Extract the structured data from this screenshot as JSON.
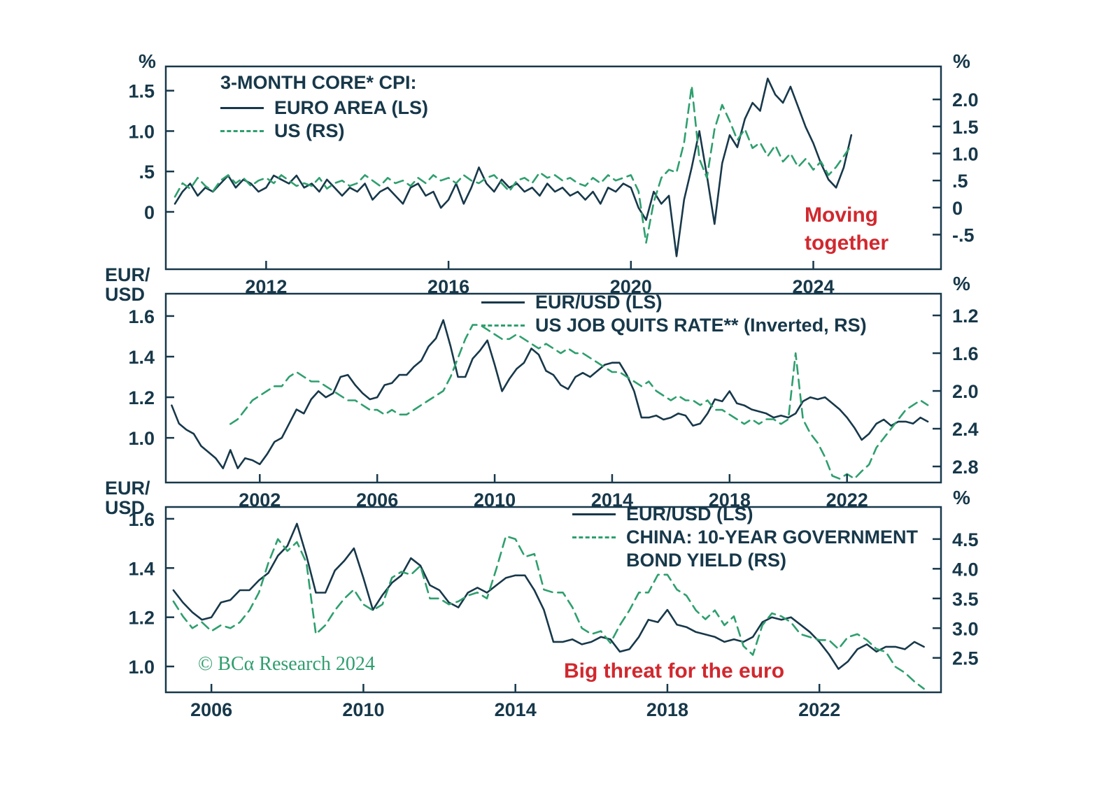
{
  "colors": {
    "line_dark": "#17384a",
    "line_green": "#2e9f6e",
    "text_dark": "#17384a",
    "annotation_red": "#d1282e",
    "copyright_green": "#2f9e6e",
    "background": "#ffffff"
  },
  "copyright": "© BCα Research 2024",
  "chart_data": [
    {
      "type": "line",
      "id": "core-cpi",
      "legend_title": "3-MONTH CORE* CPI:",
      "left_axis": {
        "unit": "%",
        "range": [
          1.8,
          -0.71
        ],
        "ticks": [
          {
            "label": "1.5",
            "value": 1.5
          },
          {
            "label": "1.0",
            "value": 1.0
          },
          {
            "label": ".5",
            "value": 0.5
          },
          {
            "label": "0",
            "value": 0
          }
        ]
      },
      "right_axis": {
        "unit": "%",
        "range": [
          2.61,
          -1.14
        ],
        "ticks": [
          {
            "label": "2.0",
            "value": 2.0
          },
          {
            "label": "1.5",
            "value": 1.5
          },
          {
            "label": "1.0",
            "value": 1.0
          },
          {
            "label": ".5",
            "value": 0.5
          },
          {
            "label": "0",
            "value": 0
          },
          {
            "label": "-.5",
            "value": -0.5
          }
        ]
      },
      "x_axis": {
        "range": [
          2009.8,
          2026.8
        ],
        "ticks": [
          {
            "label": "2012",
            "value": 2012
          },
          {
            "label": "2016",
            "value": 2016
          },
          {
            "label": "2020",
            "value": 2020
          },
          {
            "label": "2024",
            "value": 2024
          }
        ]
      },
      "annotation": {
        "line1": "Moving",
        "line2": "together"
      },
      "series": [
        {
          "name": "EURO AREA (LS)",
          "axis": "left",
          "style": "solid",
          "start": 2010.0,
          "step": 0.1666667,
          "values": [
            0.1,
            0.25,
            0.35,
            0.2,
            0.3,
            0.25,
            0.35,
            0.45,
            0.3,
            0.4,
            0.35,
            0.25,
            0.3,
            0.45,
            0.4,
            0.35,
            0.45,
            0.3,
            0.35,
            0.25,
            0.4,
            0.3,
            0.2,
            0.3,
            0.25,
            0.35,
            0.15,
            0.25,
            0.3,
            0.2,
            0.1,
            0.3,
            0.35,
            0.2,
            0.25,
            0.05,
            0.15,
            0.35,
            0.1,
            0.3,
            0.55,
            0.35,
            0.25,
            0.4,
            0.3,
            0.35,
            0.25,
            0.3,
            0.2,
            0.35,
            0.25,
            0.3,
            0.2,
            0.25,
            0.15,
            0.25,
            0.1,
            0.3,
            0.25,
            0.35,
            0.3,
            0.05,
            -0.1,
            0.25,
            0.1,
            0.2,
            -0.55,
            0.15,
            0.55,
            1.0,
            0.45,
            -0.15,
            0.6,
            0.95,
            0.8,
            1.15,
            1.35,
            1.25,
            1.65,
            1.45,
            1.35,
            1.55,
            1.3,
            1.05,
            0.85,
            0.6,
            0.4,
            0.3,
            0.55,
            0.95
          ]
        },
        {
          "name": "US (RS)",
          "axis": "right",
          "style": "dashed",
          "start": 2010.0,
          "step": 0.1666667,
          "values": [
            0.2,
            0.45,
            0.35,
            0.55,
            0.4,
            0.3,
            0.5,
            0.6,
            0.45,
            0.55,
            0.4,
            0.5,
            0.55,
            0.45,
            0.6,
            0.5,
            0.4,
            0.45,
            0.4,
            0.55,
            0.35,
            0.45,
            0.5,
            0.4,
            0.45,
            0.6,
            0.5,
            0.4,
            0.55,
            0.45,
            0.5,
            0.4,
            0.55,
            0.45,
            0.6,
            0.5,
            0.55,
            0.45,
            0.6,
            0.5,
            0.45,
            0.55,
            0.6,
            0.45,
            0.3,
            0.5,
            0.55,
            0.45,
            0.65,
            0.55,
            0.6,
            0.5,
            0.55,
            0.45,
            0.4,
            0.55,
            0.45,
            0.6,
            0.5,
            0.55,
            0.6,
            0.3,
            -0.65,
            0.1,
            0.55,
            0.7,
            0.65,
            1.2,
            2.25,
            0.9,
            0.55,
            1.45,
            1.9,
            1.6,
            1.25,
            1.45,
            1.1,
            1.2,
            0.95,
            1.15,
            0.85,
            1.0,
            0.75,
            0.9,
            0.7,
            0.85,
            0.6,
            0.75,
            0.95,
            1.15
          ]
        }
      ]
    },
    {
      "type": "line",
      "id": "eurusd-quits",
      "left_axis": {
        "title_lines": [
          "EUR/",
          "USD"
        ],
        "range": [
          1.71,
          0.78
        ],
        "ticks": [
          {
            "label": "1.6",
            "value": 1.6
          },
          {
            "label": "1.4",
            "value": 1.4
          },
          {
            "label": "1.2",
            "value": 1.2
          },
          {
            "label": "1.0",
            "value": 1.0
          }
        ]
      },
      "right_axis": {
        "unit": "%",
        "inverted": true,
        "range": [
          0.97,
          2.97
        ],
        "ticks": [
          {
            "label": "1.2",
            "value": 1.2
          },
          {
            "label": "1.6",
            "value": 1.6
          },
          {
            "label": "2.0",
            "value": 2.0
          },
          {
            "label": "2.4",
            "value": 2.4
          },
          {
            "label": "2.8",
            "value": 2.8
          }
        ]
      },
      "x_axis": {
        "range": [
          1998.8,
          2025.2
        ],
        "ticks": [
          {
            "label": "2002",
            "value": 2002
          },
          {
            "label": "2006",
            "value": 2006
          },
          {
            "label": "2010",
            "value": 2010
          },
          {
            "label": "2014",
            "value": 2014
          },
          {
            "label": "2018",
            "value": 2018
          },
          {
            "label": "2022",
            "value": 2022
          }
        ]
      },
      "series": [
        {
          "name": "EUR/USD (LS)",
          "axis": "left",
          "style": "solid",
          "start": 1999.0,
          "step": 0.25,
          "values": [
            1.16,
            1.07,
            1.04,
            1.02,
            0.96,
            0.93,
            0.9,
            0.85,
            0.94,
            0.85,
            0.9,
            0.89,
            0.87,
            0.92,
            0.98,
            1.0,
            1.07,
            1.14,
            1.12,
            1.19,
            1.23,
            1.2,
            1.22,
            1.3,
            1.31,
            1.26,
            1.22,
            1.19,
            1.2,
            1.26,
            1.27,
            1.31,
            1.31,
            1.35,
            1.38,
            1.45,
            1.49,
            1.58,
            1.45,
            1.3,
            1.3,
            1.39,
            1.43,
            1.48,
            1.36,
            1.23,
            1.29,
            1.34,
            1.37,
            1.44,
            1.41,
            1.33,
            1.31,
            1.26,
            1.24,
            1.3,
            1.32,
            1.3,
            1.33,
            1.36,
            1.37,
            1.37,
            1.31,
            1.23,
            1.1,
            1.1,
            1.11,
            1.09,
            1.1,
            1.12,
            1.11,
            1.06,
            1.07,
            1.12,
            1.19,
            1.18,
            1.23,
            1.17,
            1.16,
            1.14,
            1.13,
            1.12,
            1.1,
            1.11,
            1.1,
            1.12,
            1.18,
            1.2,
            1.19,
            1.2,
            1.17,
            1.14,
            1.1,
            1.05,
            0.99,
            1.02,
            1.07,
            1.09,
            1.06,
            1.08,
            1.08,
            1.07,
            1.1,
            1.08
          ]
        },
        {
          "name": "US JOB QUITS RATE** (Inverted, RS)",
          "axis": "right",
          "style": "dashed",
          "start": 2001.0,
          "step": 0.25,
          "values": [
            2.35,
            2.3,
            2.2,
            2.1,
            2.05,
            2.0,
            1.95,
            1.95,
            1.85,
            1.8,
            1.85,
            1.9,
            1.9,
            1.95,
            2.0,
            2.05,
            2.1,
            2.1,
            2.15,
            2.2,
            2.2,
            2.25,
            2.2,
            2.25,
            2.25,
            2.2,
            2.15,
            2.1,
            2.05,
            2.0,
            1.85,
            1.65,
            1.45,
            1.3,
            1.3,
            1.35,
            1.4,
            1.45,
            1.45,
            1.4,
            1.45,
            1.5,
            1.55,
            1.5,
            1.55,
            1.6,
            1.55,
            1.6,
            1.6,
            1.65,
            1.7,
            1.75,
            1.8,
            1.8,
            1.85,
            1.9,
            1.95,
            1.9,
            2.0,
            2.05,
            2.1,
            2.05,
            2.1,
            2.1,
            2.15,
            2.1,
            2.2,
            2.2,
            2.25,
            2.3,
            2.35,
            2.3,
            2.35,
            2.3,
            2.3,
            2.35,
            2.3,
            1.6,
            2.3,
            2.45,
            2.55,
            2.7,
            2.9,
            2.93,
            2.88,
            2.93,
            2.85,
            2.78,
            2.6,
            2.5,
            2.4,
            2.3,
            2.2,
            2.15,
            2.1,
            2.15
          ]
        }
      ]
    },
    {
      "type": "line",
      "id": "eurusd-china",
      "left_axis": {
        "title_lines": [
          "EUR/",
          "USD"
        ],
        "range": [
          1.648,
          0.895
        ],
        "ticks": [
          {
            "label": "1.6",
            "value": 1.6
          },
          {
            "label": "1.4",
            "value": 1.4
          },
          {
            "label": "1.2",
            "value": 1.2
          },
          {
            "label": "1.0",
            "value": 1.0
          }
        ]
      },
      "right_axis": {
        "unit": "%",
        "range": [
          5.04,
          1.92
        ],
        "ticks": [
          {
            "label": "4.5",
            "value": 4.5
          },
          {
            "label": "4.0",
            "value": 4.0
          },
          {
            "label": "3.5",
            "value": 3.5
          },
          {
            "label": "3.0",
            "value": 3.0
          },
          {
            "label": "2.5",
            "value": 2.5
          }
        ]
      },
      "x_axis": {
        "range": [
          2004.8,
          2025.2
        ],
        "ticks": [
          {
            "label": "2006",
            "value": 2006
          },
          {
            "label": "2010",
            "value": 2010
          },
          {
            "label": "2014",
            "value": 2014
          },
          {
            "label": "2018",
            "value": 2018
          },
          {
            "label": "2022",
            "value": 2022
          }
        ]
      },
      "annotation": {
        "text": "Big threat for the euro"
      },
      "legend_lines": {
        "row2_line1": "CHINA: 10-YEAR GOVERNMENT",
        "row2_line2": "BOND YIELD (RS)"
      },
      "series": [
        {
          "name": "EUR/USD (LS)",
          "axis": "left",
          "style": "solid",
          "start": 2005.0,
          "step": 0.25,
          "values": [
            1.31,
            1.26,
            1.22,
            1.19,
            1.2,
            1.26,
            1.27,
            1.31,
            1.31,
            1.35,
            1.38,
            1.45,
            1.49,
            1.58,
            1.45,
            1.3,
            1.3,
            1.39,
            1.43,
            1.48,
            1.36,
            1.23,
            1.29,
            1.34,
            1.37,
            1.44,
            1.41,
            1.33,
            1.31,
            1.26,
            1.24,
            1.3,
            1.32,
            1.3,
            1.33,
            1.36,
            1.37,
            1.37,
            1.31,
            1.23,
            1.1,
            1.1,
            1.11,
            1.09,
            1.1,
            1.12,
            1.11,
            1.06,
            1.07,
            1.12,
            1.19,
            1.18,
            1.23,
            1.17,
            1.16,
            1.14,
            1.13,
            1.12,
            1.1,
            1.11,
            1.1,
            1.12,
            1.18,
            1.2,
            1.19,
            1.2,
            1.17,
            1.14,
            1.1,
            1.05,
            0.99,
            1.02,
            1.07,
            1.09,
            1.06,
            1.08,
            1.08,
            1.07,
            1.1,
            1.08
          ]
        },
        {
          "name": "CHINA: 10-YEAR GOVERNMENT BOND YIELD (RS)",
          "axis": "right",
          "style": "dashed",
          "start": 2005.0,
          "step": 0.25,
          "values": [
            3.45,
            3.2,
            3.0,
            3.1,
            2.95,
            3.05,
            3.0,
            3.1,
            3.3,
            3.6,
            4.1,
            4.5,
            4.3,
            4.45,
            4.1,
            2.9,
            3.05,
            3.3,
            3.5,
            3.65,
            3.4,
            3.3,
            3.4,
            3.85,
            3.95,
            3.9,
            4.05,
            3.5,
            3.5,
            3.4,
            3.45,
            3.55,
            3.6,
            3.5,
            4.0,
            4.55,
            4.5,
            4.2,
            4.25,
            3.65,
            3.6,
            3.6,
            3.35,
            3.0,
            2.9,
            2.95,
            2.75,
            3.05,
            3.3,
            3.6,
            3.6,
            3.9,
            3.9,
            3.65,
            3.55,
            3.3,
            3.15,
            3.3,
            3.05,
            3.2,
            2.7,
            2.55,
            3.05,
            3.25,
            3.2,
            3.1,
            2.9,
            2.85,
            2.8,
            2.8,
            2.65,
            2.85,
            2.9,
            2.8,
            2.65,
            2.6,
            2.35,
            2.25,
            2.1,
            1.98
          ]
        }
      ]
    }
  ]
}
